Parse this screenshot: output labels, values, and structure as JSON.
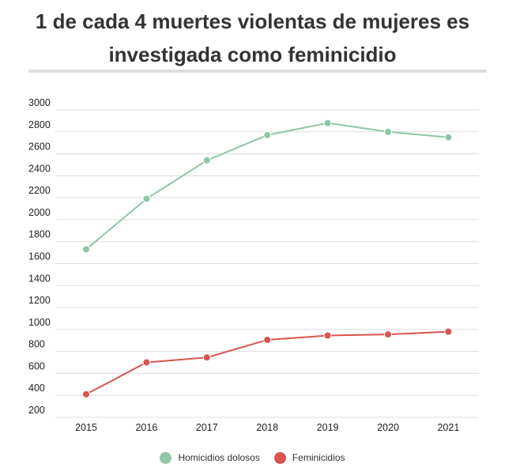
{
  "title": "1 de cada 4 muertes violentas de mujeres es investigada como feminicidio",
  "colors": {
    "homicidios": "#8fc6a6",
    "feminicidios": "#d9534f",
    "grid": "#dcdcdc"
  },
  "chart_data": {
    "type": "line",
    "title": "1 de cada 4 muertes violentas de mujeres es investigada como feminicidio",
    "x": [
      "2015",
      "2016",
      "2017",
      "2018",
      "2019",
      "2020",
      "2021"
    ],
    "ylim": [
      200,
      3000
    ],
    "yticks": [
      3000,
      2800,
      2600,
      2400,
      2200,
      2000,
      1800,
      1600,
      1400,
      1200,
      1000,
      800,
      600,
      400,
      200
    ],
    "grid": true,
    "legend_position": "bottom-center",
    "series": [
      {
        "name": "Homicidios dolosos",
        "color": "#8fc6a6",
        "values": [
          1730,
          2190,
          2540,
          2770,
          2880,
          2800,
          2750
        ]
      },
      {
        "name": "Feminicidios",
        "color": "#d9534f",
        "values": [
          410,
          700,
          745,
          905,
          945,
          955,
          980
        ]
      }
    ]
  }
}
